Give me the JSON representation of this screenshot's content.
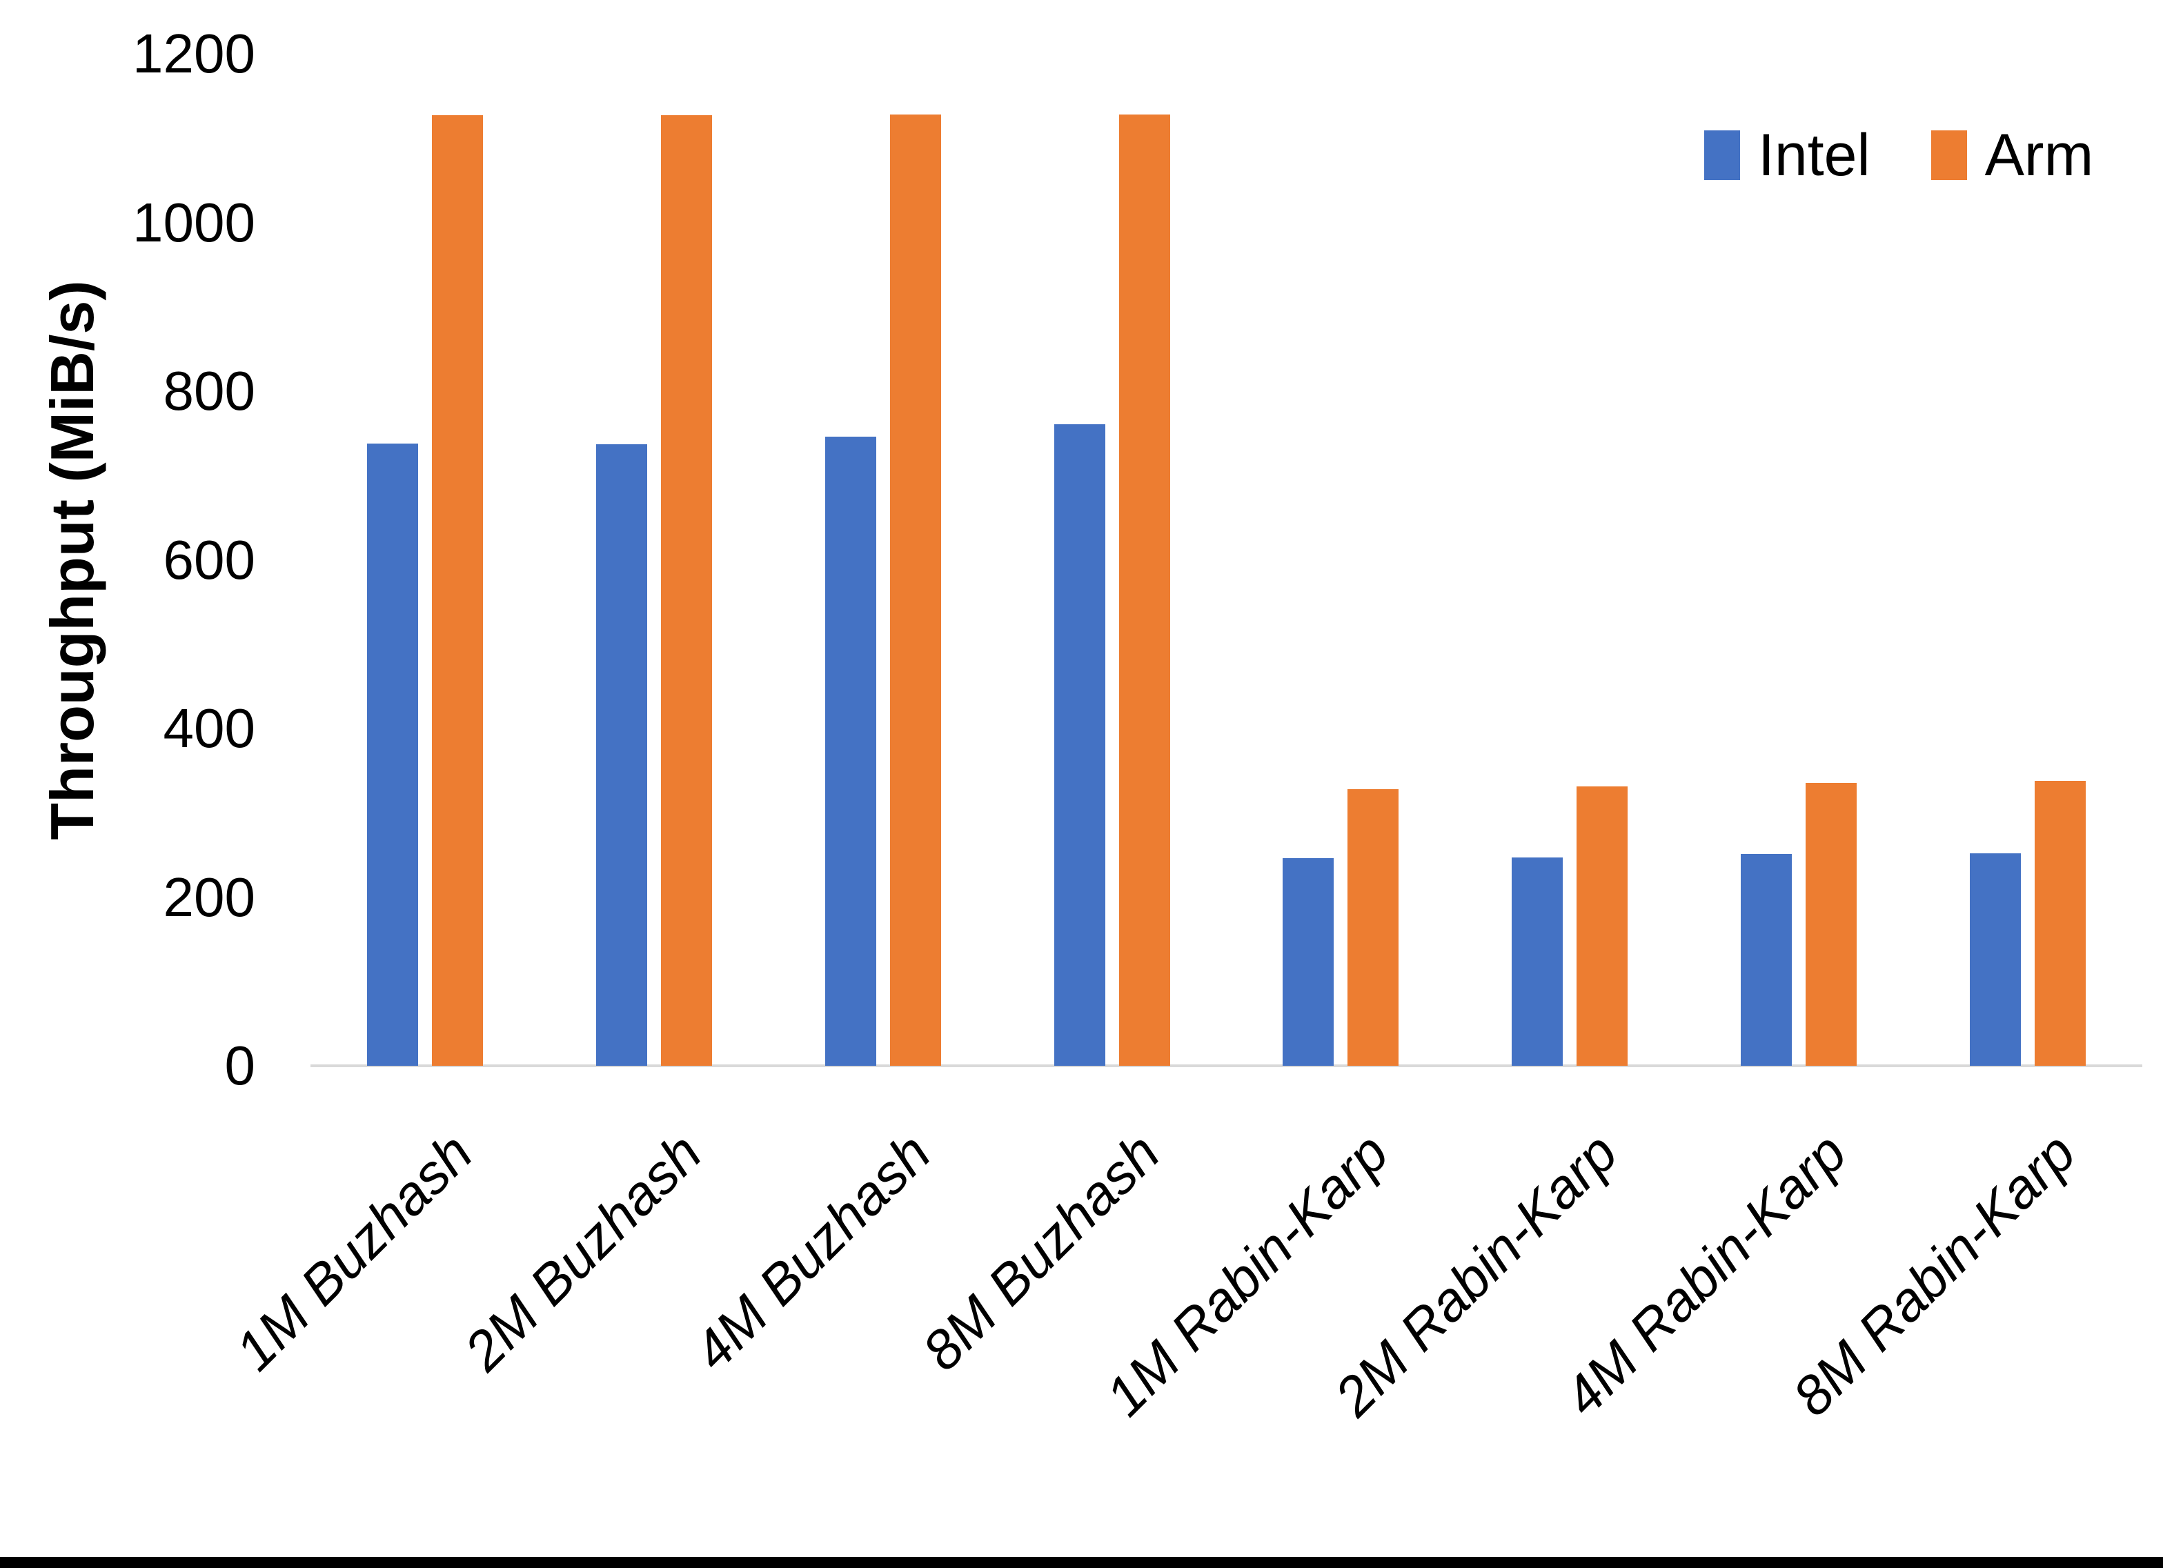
{
  "chart_data": {
    "type": "bar",
    "title": "",
    "xlabel": "",
    "ylabel": "Throughput (MiB/s)",
    "ylim": [
      0,
      1200
    ],
    "y_ticks": [
      1200,
      1000,
      800,
      600,
      400,
      200,
      0
    ],
    "grid": false,
    "legend_position": "top-right",
    "categories": [
      "1M Buzhash",
      "2M Buzhash",
      "4M Buzhash",
      "8M Buzhash",
      "1M Rabin-Karp",
      "2M Rabin-Karp",
      "4M Rabin-Karp",
      "8M Rabin-Karp"
    ],
    "series": [
      {
        "name": "Intel",
        "color": "#4472C4",
        "values": [
          738,
          737,
          746,
          761,
          246,
          247,
          251,
          252
        ]
      },
      {
        "name": "Arm",
        "color": "#ED7D31",
        "values": [
          1127,
          1127,
          1128,
          1128,
          328,
          331,
          335,
          338
        ]
      }
    ]
  },
  "colors": {
    "axis_line": "#d9d9d9",
    "text": "#000000",
    "background": "#ffffff",
    "bottom_bar": "#000000"
  }
}
